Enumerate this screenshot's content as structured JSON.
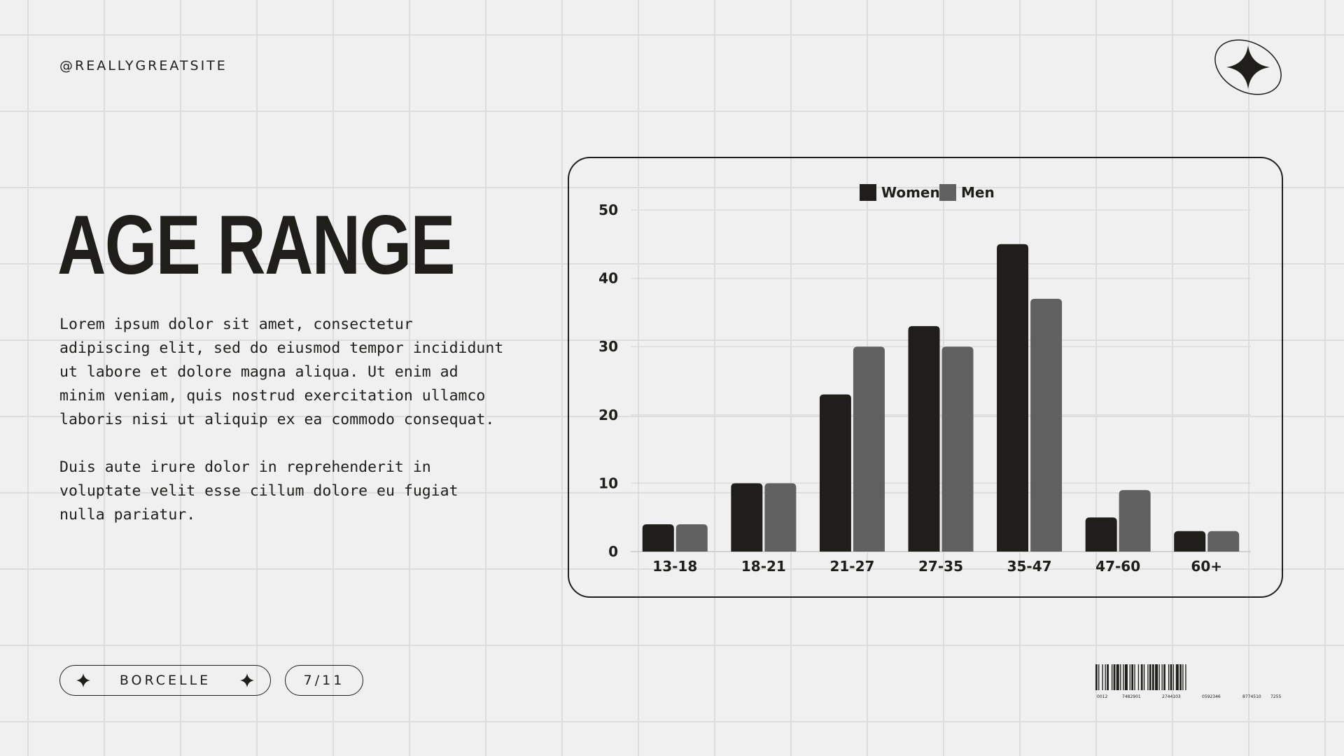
{
  "header": {
    "handle": "@REALLYGREATSITE",
    "star_icon": "four-point-star-in-ellipse"
  },
  "main": {
    "title": "AGE RANGE",
    "paragraphs": [
      "Lorem ipsum dolor sit amet, consectetur adipiscing elit, sed do eiusmod tempor incididunt ut labore et dolore magna aliqua. Ut enim ad minim veniam, quis nostrud exercitation ullamco laboris nisi ut aliquip ex ea commodo consequat.",
      "Duis aute irure dolor in reprehenderit in voluptate velit esse cillum dolore eu fugiat nulla pariatur."
    ]
  },
  "footer": {
    "brand": "BORCELLE",
    "page": "7/11",
    "barcode_numbers": [
      "0012",
      "7482901",
      "2744103",
      "0592346",
      "8774510",
      "7255"
    ]
  },
  "colors": {
    "background": "#f0f0f0",
    "ink": "#1f1e1b",
    "women": "#1f1e1b",
    "men": "#606060",
    "grid": "#dcdcdc"
  },
  "chart_data": {
    "type": "bar",
    "categories": [
      "13-18",
      "18-21",
      "21-27",
      "27-35",
      "35-47",
      "47-60",
      "60+"
    ],
    "series": [
      {
        "name": "Women",
        "values": [
          4,
          10,
          23,
          33,
          45,
          5,
          3
        ]
      },
      {
        "name": "Men",
        "values": [
          4,
          10,
          30,
          30,
          37,
          9,
          3
        ]
      }
    ],
    "yticks": [
      0,
      10,
      20,
      30,
      40,
      50
    ],
    "ylim": [
      0,
      50
    ],
    "grid": true,
    "legend": "top-center"
  }
}
